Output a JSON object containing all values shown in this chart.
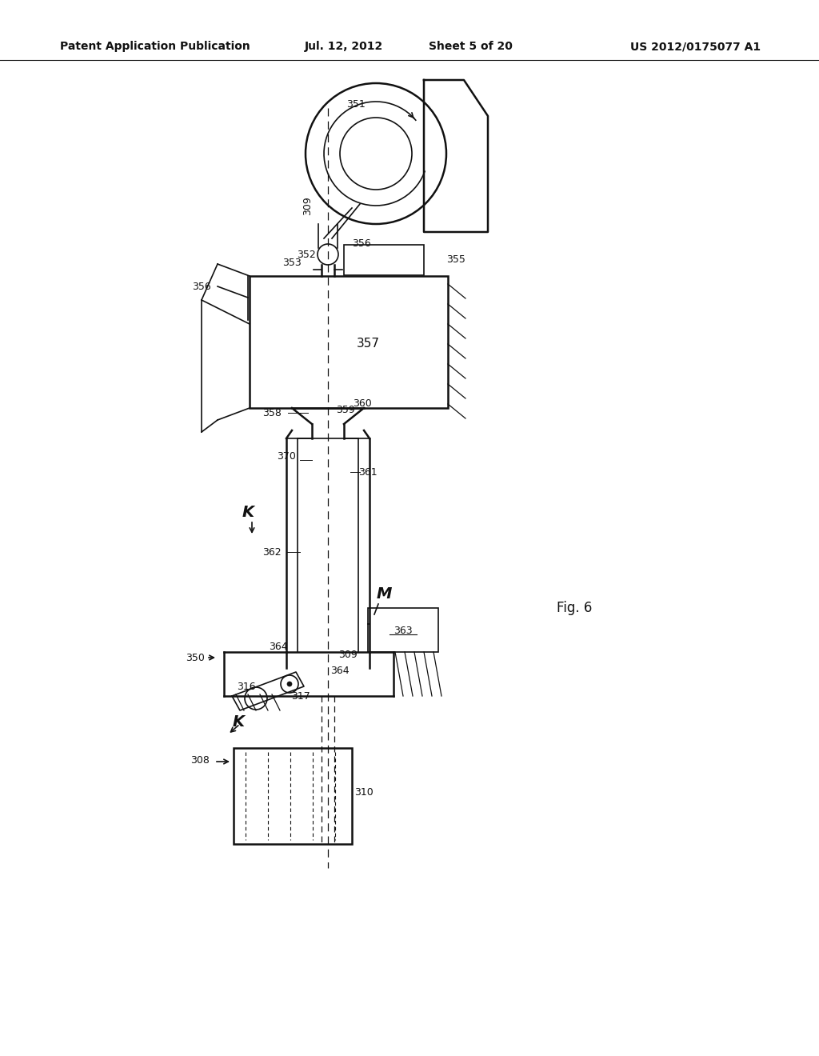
{
  "bg_color": "#ffffff",
  "header_text": "Patent Application Publication",
  "header_date": "Jul. 12, 2012",
  "header_sheet": "Sheet 5 of 20",
  "header_patent": "US 2012/0175077 A1",
  "fig_label": "Fig. 6",
  "gray": "#111111"
}
